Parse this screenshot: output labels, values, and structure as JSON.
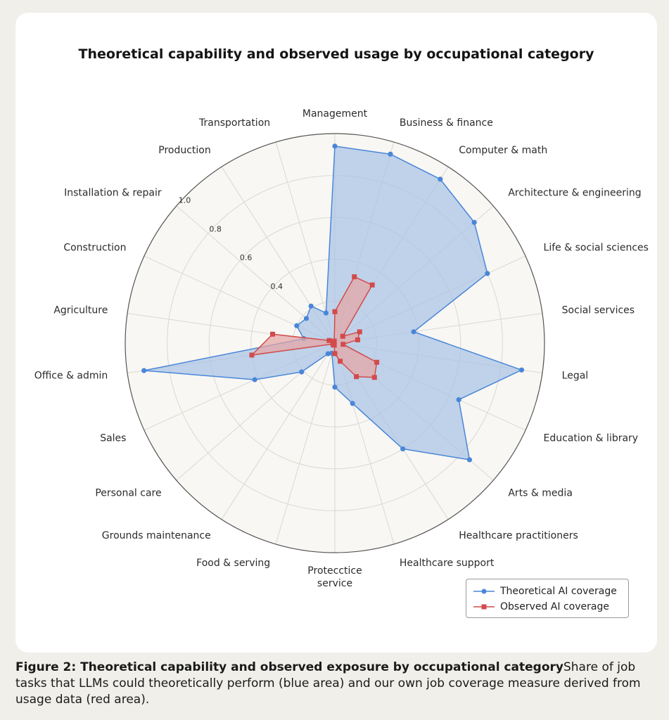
{
  "chart_data": {
    "type": "radar",
    "title": "Theoretical capability and observed usage by occupational category",
    "categories": [
      "Management",
      "Business & finance",
      "Computer & math",
      "Architecture & engineering",
      "Life & social sciences",
      "Social services",
      "Legal",
      "Education & library",
      "Arts & media",
      "Healthcare practitioners",
      "Healthcare support",
      "Protecctice service",
      "Food & serving",
      "Grounds maintenance",
      "Personal care",
      "Sales",
      "Office & admin",
      "Agriculture",
      "Construction",
      "Installation & repair",
      "Production",
      "Transportation"
    ],
    "rlim": [
      0,
      1.0
    ],
    "r_ticks": [
      0.4,
      0.6,
      0.8,
      1.0
    ],
    "r_tick_labels": [
      "0.4",
      "0.6",
      "0.8",
      "1.0"
    ],
    "grid": true,
    "legend_position": "bottom-right",
    "series": [
      {
        "name": "Theoretical AI coverage",
        "color": "#4a86d8",
        "fill": "#a9c3e6",
        "marker": "circle",
        "values": [
          0.94,
          0.94,
          0.93,
          0.88,
          0.8,
          0.38,
          0.9,
          0.65,
          0.85,
          0.6,
          0.3,
          0.21,
          0.05,
          0.06,
          0.21,
          0.42,
          0.92,
          0.15,
          0.2,
          0.18,
          0.21,
          0.15
        ]
      },
      {
        "name": "Observed AI coverage",
        "color": "#d24b4b",
        "fill": "#e4a5a5",
        "marker": "square",
        "values": [
          0.15,
          0.33,
          0.33,
          0.05,
          0.13,
          0.11,
          0.04,
          0.22,
          0.25,
          0.19,
          0.09,
          0.05,
          0.01,
          0.01,
          0.01,
          0.01,
          0.4,
          0.3,
          0.03,
          0.01,
          0.01,
          0.01
        ]
      }
    ]
  },
  "caption": {
    "bold": "Figure 2: Theoretical capability and observed exposure by occupational category",
    "text": "Share of job tasks that LLMs could theoretically perform (blue area) and our own job coverage measure derived from usage data (red area)."
  }
}
